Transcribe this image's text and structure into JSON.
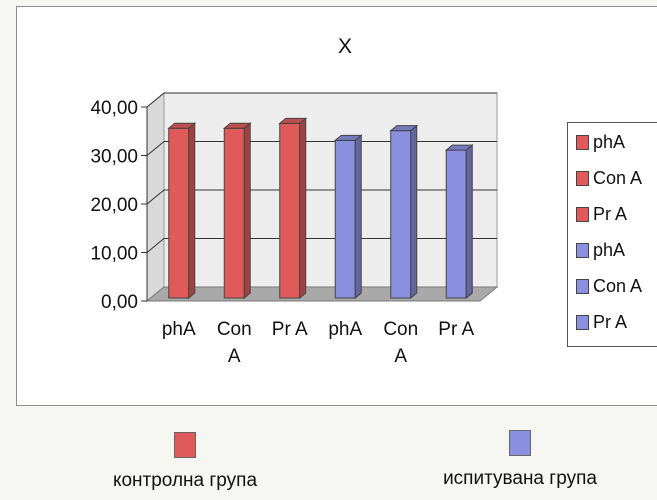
{
  "chart_data": {
    "type": "bar",
    "title": "X",
    "categories": [
      [
        "phA"
      ],
      [
        "Con",
        "A"
      ],
      [
        "Pr A"
      ],
      [
        "phA"
      ],
      [
        "Con",
        "A"
      ],
      [
        "Pr A"
      ]
    ],
    "values": [
      35.0,
      35.0,
      36.0,
      32.5,
      34.5,
      30.5
    ],
    "bar_colors": [
      "#e05a5a",
      "#e05a5a",
      "#e05a5a",
      "#8a8fe0",
      "#8a8fe0",
      "#8a8fe0"
    ],
    "y_ticks": [
      "0,00",
      "10,00",
      "20,00",
      "30,00",
      "40,00"
    ],
    "ylim": [
      0,
      40
    ],
    "grid": true,
    "legend_placement": "right",
    "legend": [
      {
        "label": "phA",
        "color": "#e05a5a"
      },
      {
        "label": "Con A",
        "color": "#e05a5a"
      },
      {
        "label": "Pr A",
        "color": "#e05a5a"
      },
      {
        "label": "phA",
        "color": "#8a8fe0"
      },
      {
        "label": "Con A",
        "color": "#8a8fe0"
      },
      {
        "label": "Pr A",
        "color": "#8a8fe0"
      }
    ]
  },
  "groups": [
    {
      "label": "контролна група",
      "color": "#e05a5a"
    },
    {
      "label": "испитувана група",
      "color": "#8a8fe0"
    }
  ]
}
